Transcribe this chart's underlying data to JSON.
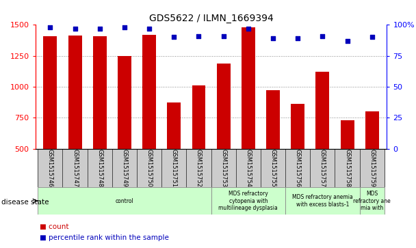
{
  "title": "GDS5622 / ILMN_1669394",
  "samples": [
    "GSM1515746",
    "GSM1515747",
    "GSM1515748",
    "GSM1515749",
    "GSM1515750",
    "GSM1515751",
    "GSM1515752",
    "GSM1515753",
    "GSM1515754",
    "GSM1515755",
    "GSM1515756",
    "GSM1515757",
    "GSM1515758",
    "GSM1515759"
  ],
  "counts": [
    1410,
    1415,
    1410,
    1250,
    1420,
    875,
    1010,
    1190,
    1480,
    975,
    865,
    1120,
    730,
    800
  ],
  "percentile_ranks": [
    98,
    97,
    97,
    98,
    97,
    90,
    91,
    91,
    97,
    89,
    89,
    91,
    87,
    90
  ],
  "ylim_left": [
    500,
    1500
  ],
  "ylim_right": [
    0,
    100
  ],
  "yticks_left": [
    500,
    750,
    1000,
    1250,
    1500
  ],
  "yticks_right": [
    0,
    25,
    50,
    75,
    100
  ],
  "bar_color": "#cc0000",
  "dot_color": "#0000bb",
  "grid_color": "#888888",
  "disease_groups": [
    {
      "label": "control",
      "start": 0,
      "end": 7
    },
    {
      "label": "MDS refractory\ncytopenia with\nmultilineage dysplasia",
      "start": 7,
      "end": 10
    },
    {
      "label": "MDS refractory anemia\nwith excess blasts-1",
      "start": 10,
      "end": 13
    },
    {
      "label": "MDS\nrefractory ane\nmia with",
      "start": 13,
      "end": 14
    }
  ],
  "disease_color": "#ccffcc",
  "xlabel_disease": "disease state",
  "legend_count": "count",
  "legend_pct": "percentile rank within the sample",
  "bg_color": "#ffffff",
  "tick_label_bg": "#cccccc"
}
